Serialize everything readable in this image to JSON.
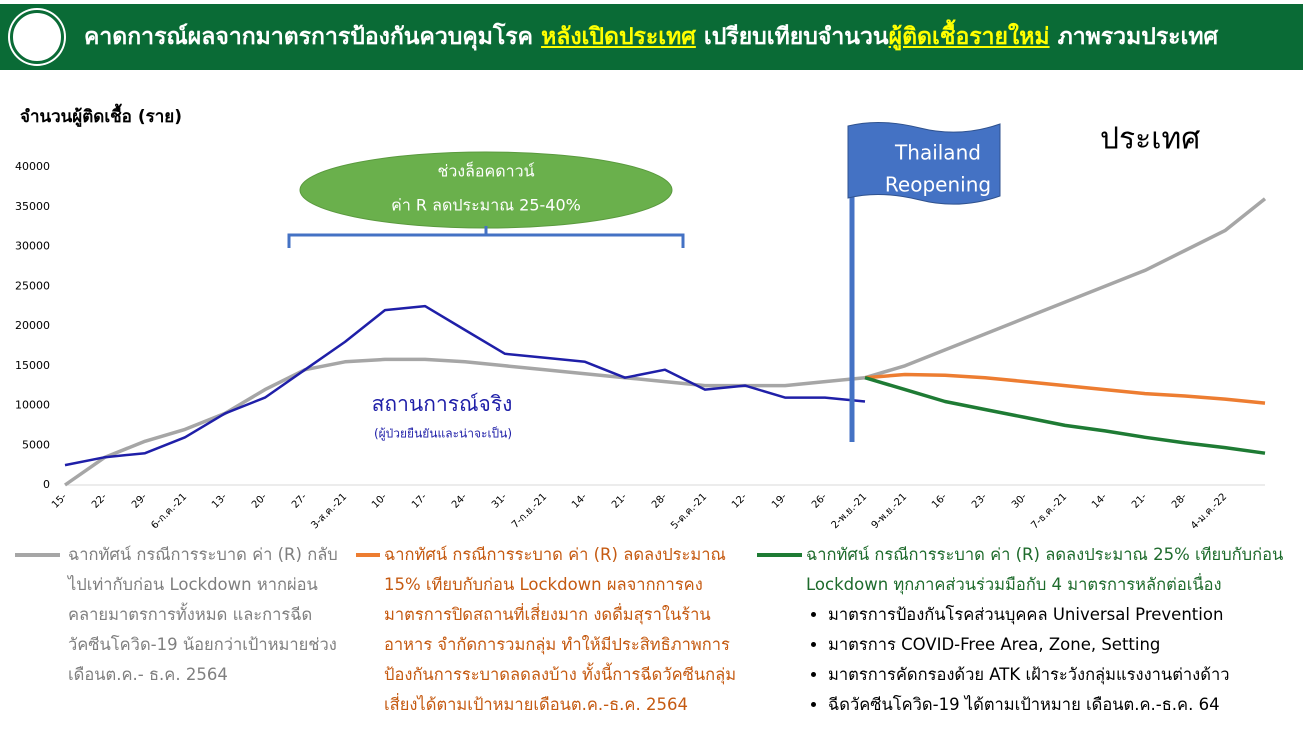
{
  "chart_data": {
    "type": "line",
    "title_parts": [
      "คาดการณ์ผลจากมาตรการป้องกันควบคุมโรค",
      "หลังเปิดประเทศ",
      "เปรียบเทียบจำนวน",
      "ผู้ติดเชื้อรายใหม่",
      "ภาพรวมประเทศ"
    ],
    "y_label": "จำนวนผู้ติดเชื้อ (ราย)",
    "region_label": "ประเทศ",
    "reopening_label": [
      "Thailand",
      "Reopening"
    ],
    "lockdown_label": [
      "ช่วงล็อคดาวน์",
      "ค่า R ลดประมาณ 25-40%"
    ],
    "actual_note": "(ผู้ป่วยยืนยันและน่าจะเป็น)",
    "legend_bullets": [
      "มาตรการป้องกันโรคส่วนบุคคล Universal Prevention",
      "มาตรการ COVID-Free Area, Zone, Setting",
      "มาตรการคัดกรองด้วย ATK เฝ้าระวังกลุ่มแรงงานต่างด้าว",
      "ฉีดวัคซีนโควิด-19 ได้ตามเป้าหมาย เดือนต.ค.-ธ.ค. 64"
    ],
    "categories": [
      "15-",
      "22-",
      "29-",
      "6-ก.ค.-21",
      "13-",
      "20-",
      "27-",
      "3-ส.ค.-21",
      "10-",
      "17-",
      "24-",
      "31-",
      "7-ก.ย.-21",
      "14-",
      "21-",
      "28-",
      "5-ต.ค.-21",
      "12-",
      "19-",
      "26-",
      "2-พ.ย.-21",
      "9-พ.ย.-21",
      "16-",
      "23-",
      "30-",
      "7-ธ.ค.-21",
      "14-",
      "21-",
      "28-",
      "4-ม.ค.-22",
      null
    ],
    "series": [
      {
        "name": "ฉากทัศน์ กรณีการระบาด ค่า (R) กลับไปเท่ากับก่อน Lockdown หากผ่อนคลายมาตรการทั้งหมด และการฉีดวัคซีนโควิด-19 น้อยกว่าเป้าหมายช่วงเดือนต.ค.- ธ.ค. 2564",
        "color": "#a6a6a6",
        "values": [
          0,
          3500,
          5500,
          7000,
          9000,
          12000,
          14500,
          15500,
          15800,
          15800,
          15500,
          15000,
          14500,
          14000,
          13500,
          13000,
          12500,
          12500,
          12500,
          13000,
          13500,
          15000,
          17000,
          19000,
          21000,
          23000,
          25000,
          27000,
          29500,
          32000,
          36000
        ]
      },
      {
        "name": "ฉากทัศน์ กรณีการระบาด ค่า (R) ลดลงประมาณ 15% เทียบกับก่อน Lockdown ผลจากการคงมาตรการปิดสถานที่เสี่ยงมาก งดดื่มสุราในร้านอาหาร จำกัดการวมกลุ่ม ทำให้มีประสิทธิภาพการป้องกันการระบาดลดลงบ้าง ทั้งนี้การฉีดวัคซีนกลุ่มเสี่ยงได้ตามเป้าหมายเดือนต.ค.-ธ.ค. 2564",
        "color": "#ed7d31",
        "values": [
          null,
          null,
          null,
          null,
          null,
          null,
          null,
          null,
          null,
          null,
          null,
          null,
          null,
          null,
          null,
          null,
          null,
          null,
          null,
          null,
          13500,
          13900,
          13800,
          13500,
          13000,
          12500,
          12000,
          11500,
          11200,
          10800,
          10300
        ]
      },
      {
        "name": "ฉากทัศน์ กรณีการระบาด ค่า (R) ลดลงประมาณ 25% เทียบกับก่อน Lockdown ทุกภาคส่วนร่วมมือกับ 4 มาตรการหลักต่อเนื่อง",
        "color": "#1e7b34",
        "values": [
          null,
          null,
          null,
          null,
          null,
          null,
          null,
          null,
          null,
          null,
          null,
          null,
          null,
          null,
          null,
          null,
          null,
          null,
          null,
          null,
          13500,
          12000,
          10500,
          9500,
          8500,
          7500,
          6800,
          6000,
          5300,
          4700,
          4000
        ]
      },
      {
        "name": "สถานการณ์จริง",
        "color": "#1f1fa8",
        "values": [
          2500,
          3500,
          4000,
          6000,
          9000,
          11000,
          14500,
          18000,
          22000,
          22500,
          19500,
          16500,
          16000,
          15500,
          13500,
          14500,
          12000,
          12500,
          11000,
          11000,
          10500,
          null,
          null,
          null,
          null,
          null,
          null,
          null,
          null,
          null,
          null
        ]
      }
    ],
    "ylim": [
      0,
      40000
    ],
    "yticks": [
      0,
      5000,
      10000,
      15000,
      20000,
      25000,
      30000,
      35000,
      40000
    ]
  }
}
